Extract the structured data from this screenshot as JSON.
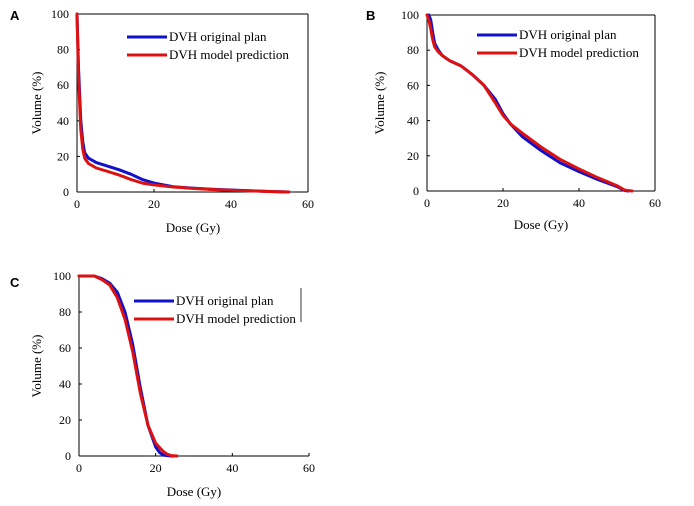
{
  "chart_data": [
    {
      "type": "line",
      "panel": "A",
      "xlabel": "Dose (Gy)",
      "ylabel": "Volume (%)",
      "xlim": [
        0,
        60
      ],
      "ylim": [
        0,
        100
      ],
      "xticks": [
        "0",
        "20",
        "40",
        "60"
      ],
      "yticks": [
        "0",
        "20",
        "40",
        "60",
        "80",
        "100"
      ],
      "legend_position": "top-right",
      "series": [
        {
          "name": "DVH original plan",
          "color": "#1111cc",
          "x": [
            0,
            0.4,
            1,
            1.5,
            2,
            3,
            5,
            8,
            11,
            14,
            17,
            20,
            25,
            30,
            35,
            40,
            45,
            50,
            55
          ],
          "y": [
            100,
            70,
            40,
            28,
            22,
            19,
            16.5,
            14.5,
            12.5,
            10,
            7,
            5,
            3,
            2.2,
            1.6,
            1.1,
            0.7,
            0.3,
            0
          ]
        },
        {
          "name": "DVH model prediction",
          "color": "#dd1111",
          "x": [
            0,
            0.4,
            1,
            1.5,
            2,
            3,
            5,
            8,
            11,
            14,
            17,
            20,
            25,
            30,
            35,
            40,
            45,
            50,
            55
          ],
          "y": [
            100,
            65,
            35,
            24,
            19,
            16,
            13.5,
            11.5,
            9.5,
            7,
            5,
            4,
            2.8,
            2,
            1.4,
            1,
            0.6,
            0.3,
            0
          ]
        }
      ]
    },
    {
      "type": "line",
      "panel": "B",
      "xlabel": "Dose (Gy)",
      "ylabel": "Volume (%)",
      "xlim": [
        0,
        60
      ],
      "ylim": [
        0,
        100
      ],
      "xticks": [
        "0",
        "20",
        "40",
        "60"
      ],
      "yticks": [
        "0",
        "20",
        "40",
        "60",
        "80",
        "100"
      ],
      "legend_position": "top-right",
      "series": [
        {
          "name": "DVH original plan",
          "color": "#1111cc",
          "x": [
            0,
            0.5,
            1,
            1.5,
            2,
            3,
            4,
            6,
            9,
            12,
            15,
            18,
            20,
            22,
            25,
            30,
            35,
            40,
            45,
            50,
            52,
            53
          ],
          "y": [
            100,
            100,
            97,
            90,
            84,
            80,
            77,
            74,
            71,
            66,
            60,
            52,
            44,
            38,
            31,
            23,
            16,
            11,
            6.5,
            2.5,
            0.3,
            0
          ]
        },
        {
          "name": "DVH model prediction",
          "color": "#dd1111",
          "x": [
            0,
            0.5,
            1,
            1.5,
            2,
            3,
            4,
            6,
            9,
            12,
            15,
            18,
            20,
            22,
            25,
            30,
            35,
            40,
            45,
            50,
            52,
            54
          ],
          "y": [
            100,
            97,
            92,
            86,
            82,
            79,
            77,
            74,
            71,
            66,
            60,
            50,
            43,
            38,
            33,
            25,
            18,
            12.5,
            7.5,
            3,
            0.5,
            0
          ]
        }
      ]
    },
    {
      "type": "line",
      "panel": "C",
      "xlabel": "Dose (Gy)",
      "ylabel": "Volume (%)",
      "xlim": [
        0,
        60
      ],
      "ylim": [
        0,
        100
      ],
      "xticks": [
        "0",
        "20",
        "40",
        "60"
      ],
      "yticks": [
        "0",
        "20",
        "40",
        "60",
        "80",
        "100"
      ],
      "legend_position": "top-right",
      "series": [
        {
          "name": "DVH original plan",
          "color": "#1111cc",
          "x": [
            0,
            4,
            6,
            8,
            10,
            12,
            14,
            16,
            18,
            20,
            21,
            22,
            24,
            25.5
          ],
          "y": [
            100,
            100,
            98.5,
            96,
            91,
            80,
            62,
            38,
            17,
            5,
            2,
            0.5,
            0,
            0
          ]
        },
        {
          "name": "DVH model prediction",
          "color": "#dd1111",
          "x": [
            0,
            4,
            6,
            8,
            10,
            12,
            14,
            16,
            18,
            20,
            22,
            23,
            24,
            25.5
          ],
          "y": [
            100,
            100,
            98,
            95,
            88,
            76,
            58,
            35,
            17,
            7,
            2.5,
            1,
            0.3,
            0
          ]
        }
      ]
    }
  ]
}
